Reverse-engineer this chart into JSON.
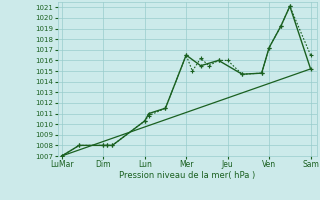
{
  "bg_color": "#cceaea",
  "grid_color": "#99cccc",
  "line_color": "#1a6020",
  "xlabel": "Pression niveau de la mer( hPa )",
  "ylim": [
    1007,
    1021.5
  ],
  "yticks": [
    1007,
    1008,
    1009,
    1010,
    1011,
    1012,
    1013,
    1014,
    1015,
    1016,
    1017,
    1018,
    1019,
    1020,
    1021
  ],
  "x_labels": [
    "LuMar",
    "Dim",
    "Lun",
    "Mer",
    "Jeu",
    "Ven",
    "Sam"
  ],
  "x_positions": [
    0,
    1,
    2,
    3,
    4,
    5,
    6
  ],
  "xlim": [
    -0.1,
    6.15
  ],
  "line1_x": [
    0.0,
    0.42,
    1.0,
    1.08,
    1.22,
    2.0,
    2.1,
    2.5,
    3.0,
    3.15,
    3.35,
    3.55,
    3.78,
    4.0,
    4.35,
    4.82,
    5.0,
    5.28,
    5.5,
    6.0
  ],
  "line1_y": [
    1007,
    1008,
    1008,
    1008,
    1008,
    1010.3,
    1010.8,
    1011.5,
    1016.5,
    1015.0,
    1016.2,
    1015.5,
    1016.0,
    1016.0,
    1014.7,
    1014.8,
    1017.2,
    1019.2,
    1021.1,
    1016.5
  ],
  "line2_x": [
    0.0,
    0.42,
    1.0,
    1.08,
    1.22,
    2.0,
    2.1,
    2.5,
    3.0,
    3.35,
    3.78,
    4.35,
    4.82,
    5.0,
    5.28,
    5.5,
    6.0
  ],
  "line2_y": [
    1007,
    1008,
    1008,
    1008,
    1008,
    1010.3,
    1011.0,
    1011.5,
    1016.5,
    1015.5,
    1016.0,
    1014.7,
    1014.8,
    1017.2,
    1019.2,
    1021.1,
    1015.2
  ],
  "trend_x": [
    0.0,
    6.0
  ],
  "trend_y": [
    1007.0,
    1015.2
  ],
  "xlabel_fontsize": 6.0,
  "xtick_fontsize": 5.5,
  "ytick_fontsize": 5.0
}
